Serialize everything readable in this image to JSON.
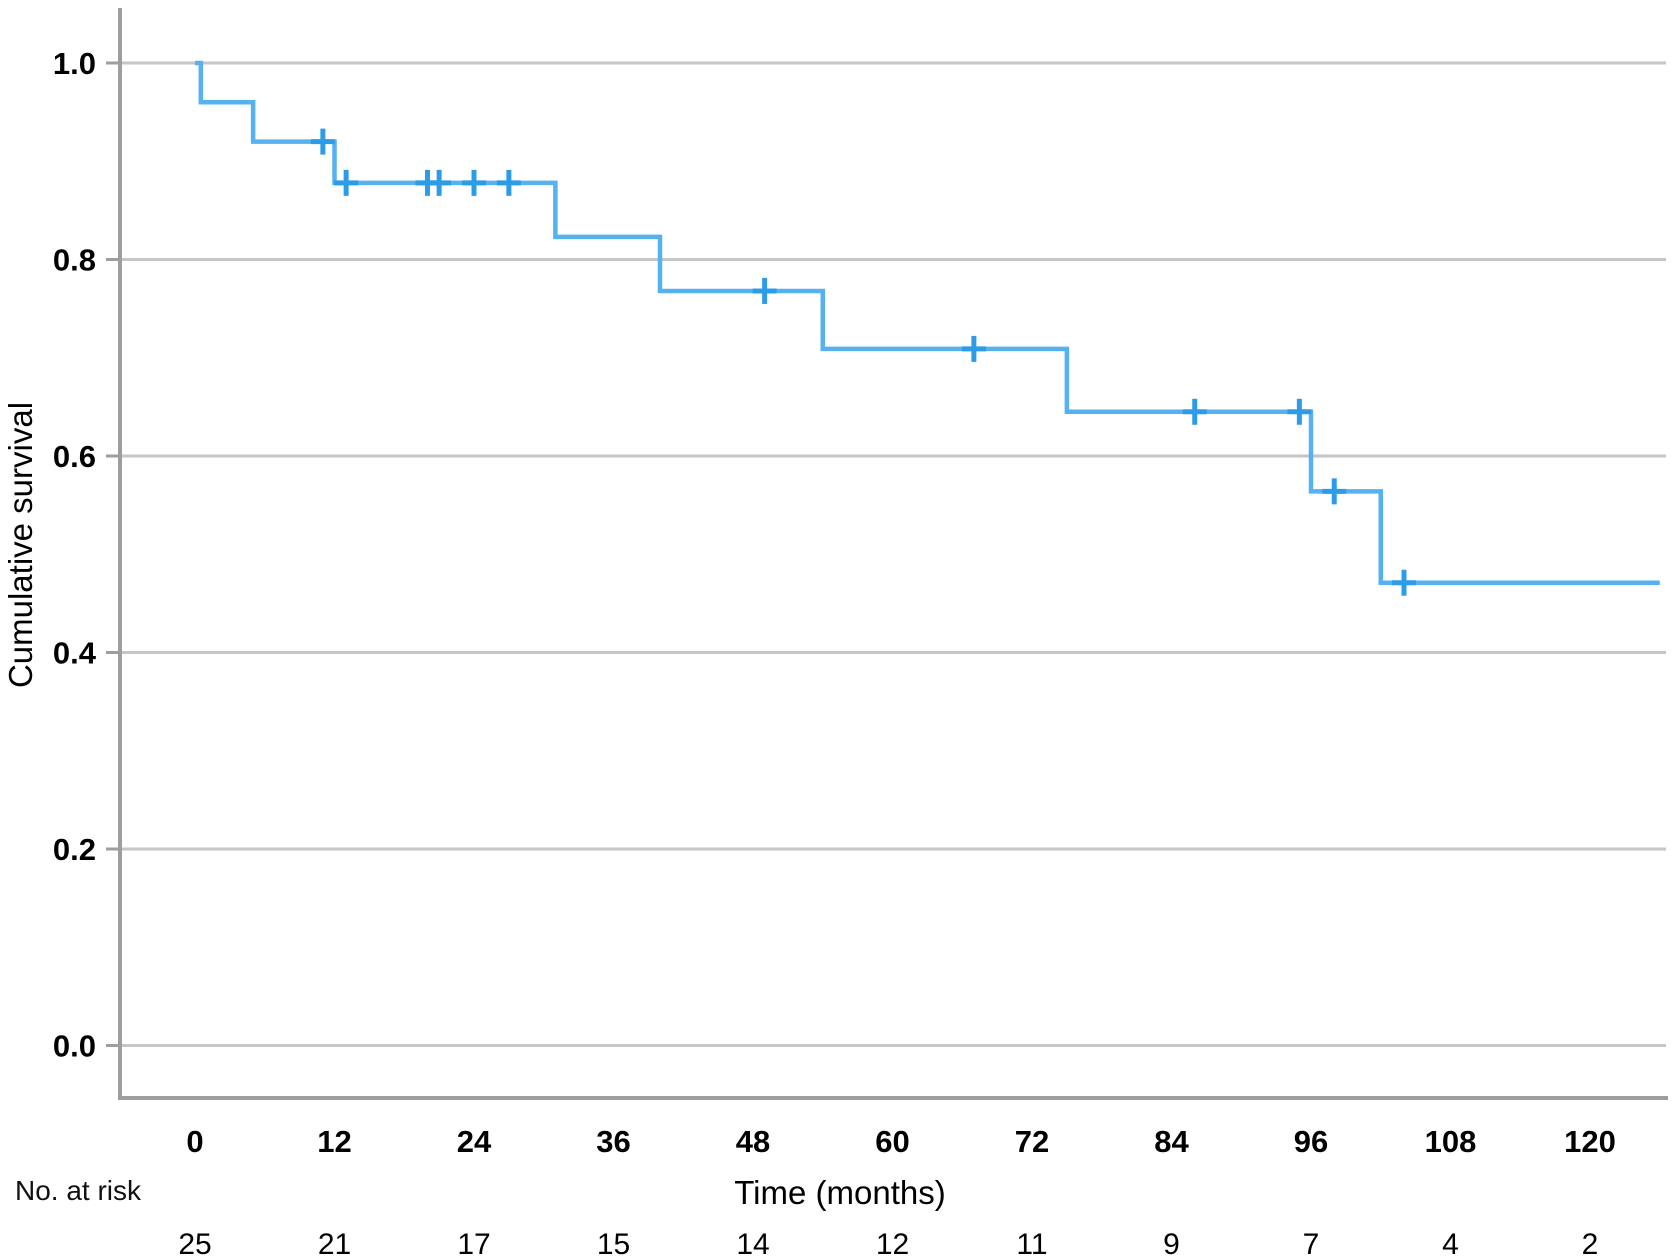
{
  "chart_data": {
    "type": "line",
    "subtype": "kaplan-meier-step-curve",
    "title": "",
    "xlabel": "Time (months)",
    "ylabel": "Cumulative survival",
    "at_risk_label": "No. at risk",
    "x_ticks": [
      0,
      12,
      24,
      36,
      48,
      60,
      72,
      84,
      96,
      108,
      120
    ],
    "y_ticks": [
      1.0,
      0.8,
      0.6,
      0.4,
      0.2,
      0.0
    ],
    "y_tick_labels": [
      "1.0",
      "0.8",
      "0.6",
      "0.4",
      "0.2",
      "0.0"
    ],
    "xlim": [
      -6.5,
      126.5
    ],
    "ylim": [
      -0.054,
      1.056
    ],
    "grid": "horizontal-only",
    "legend": "none",
    "series": [
      {
        "name": "Cumulative survival",
        "steps": [
          {
            "t": 0,
            "s": 1.0
          },
          {
            "t": 0.5,
            "s": 0.96
          },
          {
            "t": 5,
            "s": 0.92
          },
          {
            "t": 12,
            "s": 0.878
          },
          {
            "t": 31,
            "s": 0.823
          },
          {
            "t": 40,
            "s": 0.768
          },
          {
            "t": 54,
            "s": 0.709
          },
          {
            "t": 75,
            "s": 0.645
          },
          {
            "t": 96,
            "s": 0.564
          },
          {
            "t": 102,
            "s": 0.471
          }
        ],
        "curve_end_t": 126,
        "censored": [
          {
            "t": 11,
            "s": 0.92
          },
          {
            "t": 13,
            "s": 0.878
          },
          {
            "t": 20,
            "s": 0.878
          },
          {
            "t": 21,
            "s": 0.878
          },
          {
            "t": 24,
            "s": 0.878
          },
          {
            "t": 27,
            "s": 0.878
          },
          {
            "t": 49,
            "s": 0.768
          },
          {
            "t": 67,
            "s": 0.709
          },
          {
            "t": 86,
            "s": 0.645
          },
          {
            "t": 95,
            "s": 0.645
          },
          {
            "t": 98,
            "s": 0.564
          },
          {
            "t": 104,
            "s": 0.471
          }
        ]
      }
    ],
    "at_risk": {
      "times": [
        0,
        12,
        24,
        36,
        48,
        60,
        72,
        84,
        96,
        108,
        120
      ],
      "counts": [
        25,
        21,
        17,
        15,
        14,
        12,
        11,
        9,
        7,
        4,
        2
      ]
    }
  },
  "colors": {
    "curve": "#55B1F0",
    "censor": "#2D9CE8",
    "gridline": "#C6C6C6",
    "axis": "#9E9E9E",
    "text": "#000000",
    "background": "#FFFFFF"
  }
}
